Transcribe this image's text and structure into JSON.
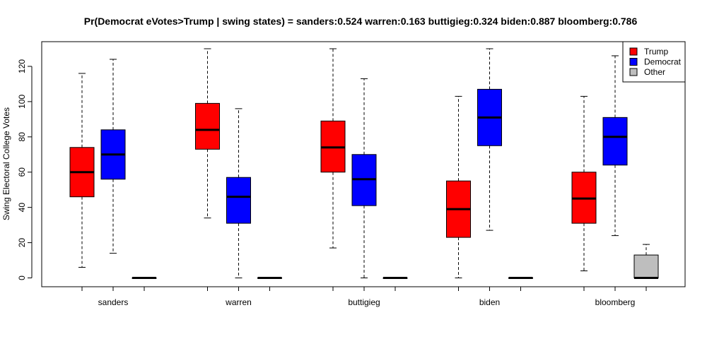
{
  "chart_data": {
    "type": "boxplot",
    "title": "Pr(Democrat eVotes>Trump | swing states) = sanders:0.524  warren:0.163  buttigieg:0.324  biden:0.887  bloomberg:0.786",
    "ylabel": "Swing Electoral College Votes",
    "xlabel": "",
    "ylim": [
      -5,
      134
    ],
    "yticks": [
      0,
      20,
      40,
      60,
      80,
      100,
      120
    ],
    "categories": [
      "sanders",
      "warren",
      "buttigieg",
      "biden",
      "bloomberg"
    ],
    "legend": {
      "position": "top-right",
      "entries": [
        {
          "name": "Trump",
          "color": "#ff0000"
        },
        {
          "name": "Democrat",
          "color": "#0000ff"
        },
        {
          "name": "Other",
          "color": "#bebebe"
        }
      ]
    },
    "series": [
      {
        "name": "Trump",
        "color": "#ff0000",
        "boxes": [
          {
            "min": 6,
            "q1": 46,
            "median": 60,
            "q3": 74,
            "max": 116
          },
          {
            "min": 34,
            "q1": 73,
            "median": 84,
            "q3": 99,
            "max": 130
          },
          {
            "min": 17,
            "q1": 60,
            "median": 74,
            "q3": 89,
            "max": 130
          },
          {
            "min": 0,
            "q1": 23,
            "median": 39,
            "q3": 55,
            "max": 103
          },
          {
            "min": 4,
            "q1": 31,
            "median": 45,
            "q3": 60,
            "max": 103
          }
        ]
      },
      {
        "name": "Democrat",
        "color": "#0000ff",
        "boxes": [
          {
            "min": 14,
            "q1": 56,
            "median": 70,
            "q3": 84,
            "max": 124
          },
          {
            "min": 0,
            "q1": 31,
            "median": 46,
            "q3": 57,
            "max": 96
          },
          {
            "min": 0,
            "q1": 41,
            "median": 56,
            "q3": 70,
            "max": 113
          },
          {
            "min": 27,
            "q1": 75,
            "median": 91,
            "q3": 107,
            "max": 130
          },
          {
            "min": 24,
            "q1": 64,
            "median": 80,
            "q3": 91,
            "max": 126
          }
        ]
      },
      {
        "name": "Other",
        "color": "#bebebe",
        "boxes": [
          {
            "min": 0,
            "q1": 0,
            "median": 0,
            "q3": 0,
            "max": 0
          },
          {
            "min": 0,
            "q1": 0,
            "median": 0,
            "q3": 0,
            "max": 0
          },
          {
            "min": 0,
            "q1": 0,
            "median": 0,
            "q3": 0,
            "max": 0
          },
          {
            "min": 0,
            "q1": 0,
            "median": 0,
            "q3": 0,
            "max": 0
          },
          {
            "min": 0,
            "q1": 0,
            "median": 0,
            "q3": 13,
            "max": 19
          }
        ]
      }
    ]
  }
}
